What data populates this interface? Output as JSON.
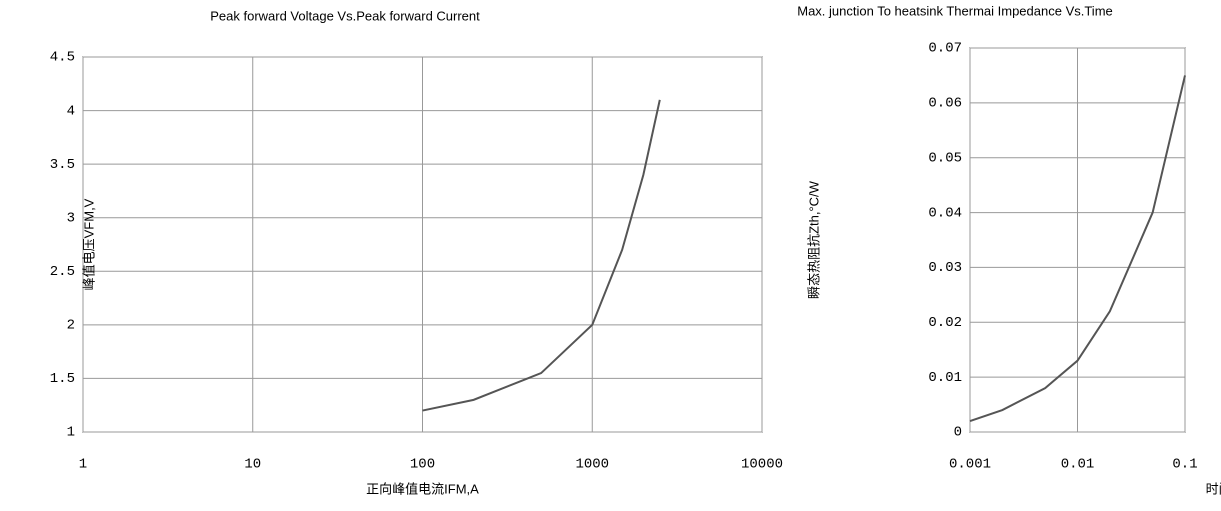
{
  "chart_data": [
    {
      "type": "line",
      "title": "Peak forward Voltage Vs.Peak forward Current",
      "xlabel": "正向峰值电流IFM,A",
      "ylabel": "峰值电压VFM,V",
      "log_x": true,
      "grid": true,
      "xlim": [
        1,
        10000
      ],
      "xticks": [
        1,
        10,
        100,
        1000,
        10000
      ],
      "ylim": [
        1,
        4.5
      ],
      "yticks": [
        1,
        1.5,
        2,
        2.5,
        3,
        3.5,
        4,
        4.5
      ],
      "x": [
        100,
        200,
        500,
        1000,
        1500,
        2000,
        2500
      ],
      "series": [
        {
          "name": "VFM",
          "color": "#555555",
          "values": [
            1.2,
            1.3,
            1.55,
            2.0,
            2.7,
            3.4,
            4.1
          ]
        }
      ]
    },
    {
      "type": "line",
      "title": "Max. junction To heatsink Thermai Impedance Vs.Time",
      "xlabel": "时间t,S",
      "ylabel": "瞬态热阻抗Zth,°C/W",
      "log_x": true,
      "grid": true,
      "xlim": [
        0.001,
        0.1
      ],
      "xticks": [
        0.001,
        0.01,
        0.1
      ],
      "ylim": [
        0,
        0.07
      ],
      "yticks": [
        0,
        0.01,
        0.02,
        0.03,
        0.04,
        0.05,
        0.06,
        0.07
      ],
      "x": [
        0.001,
        0.002,
        0.005,
        0.01,
        0.02,
        0.05,
        0.1
      ],
      "series": [
        {
          "name": "Zth",
          "color": "#555555",
          "values": [
            0.002,
            0.004,
            0.008,
            0.013,
            0.022,
            0.04,
            0.065
          ]
        }
      ]
    }
  ]
}
